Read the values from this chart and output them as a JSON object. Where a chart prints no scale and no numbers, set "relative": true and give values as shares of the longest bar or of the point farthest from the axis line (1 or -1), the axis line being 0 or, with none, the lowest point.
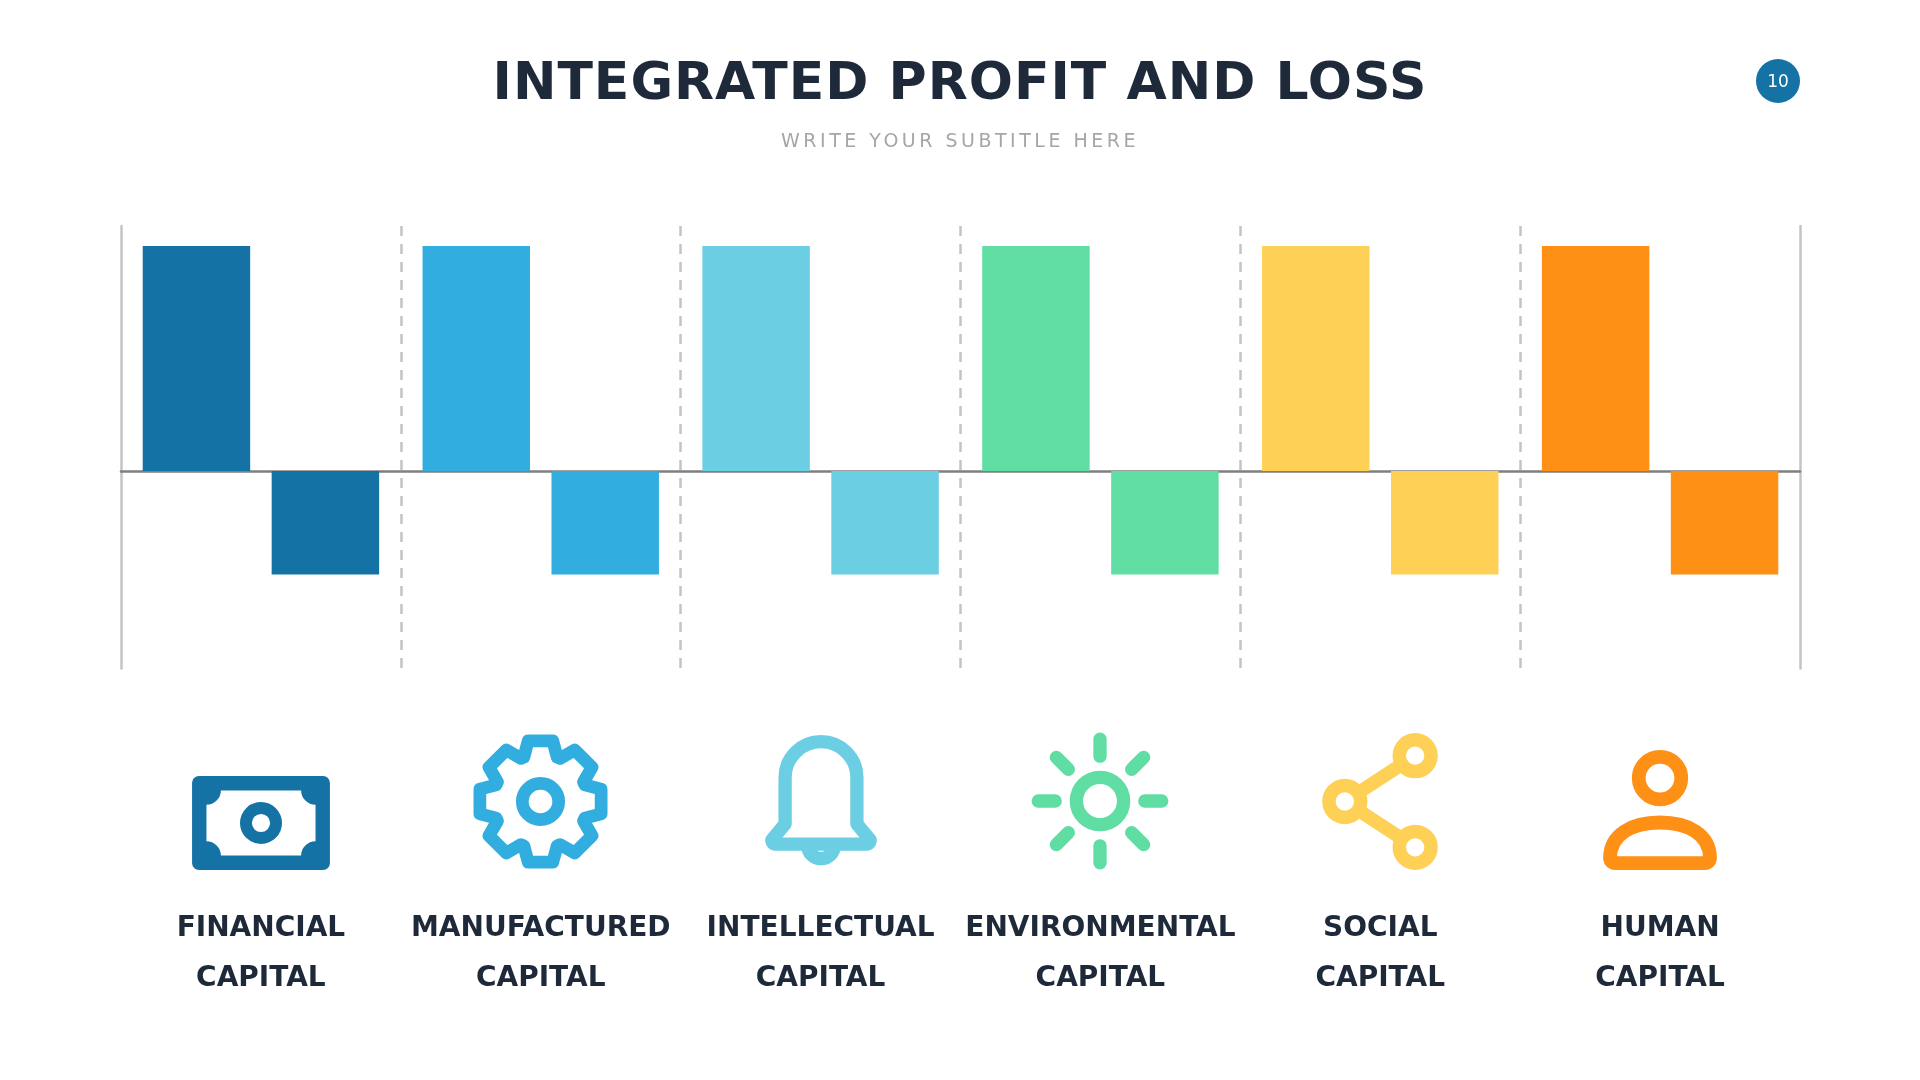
{
  "chart_data": {
    "type": "bar",
    "title": "INTEGRATED PROFIT AND LOSS",
    "subtitle": "WRITE YOUR SUBTITLE HERE",
    "annotations": [
      "10"
    ],
    "categories": [
      "FINANCIAL CAPITAL",
      "MANUFACTURED CAPITAL",
      "INTELLECTUAL CAPITAL",
      "ENVIRONMENTAL CAPITAL",
      "SOCIAL CAPITAL",
      "HUMAN CAPITAL"
    ],
    "relative": true,
    "grid": "x",
    "series": [
      {
        "colors": [
          "#1572a4",
          "#31addf",
          "#6bcee2",
          "#60dda3",
          "#fed055",
          "#fe9016"
        ],
        "values": [
          1,
          1,
          1,
          1,
          1,
          1
        ]
      },
      {
        "colors": [
          "#1572a4",
          "#31addf",
          "#6bcee2",
          "#60dda3",
          "#fed055",
          "#fe9016"
        ],
        "values": [
          -0.46,
          -0.46,
          -0.46,
          -0.46,
          -0.46,
          -0.46
        ]
      }
    ]
  }
}
